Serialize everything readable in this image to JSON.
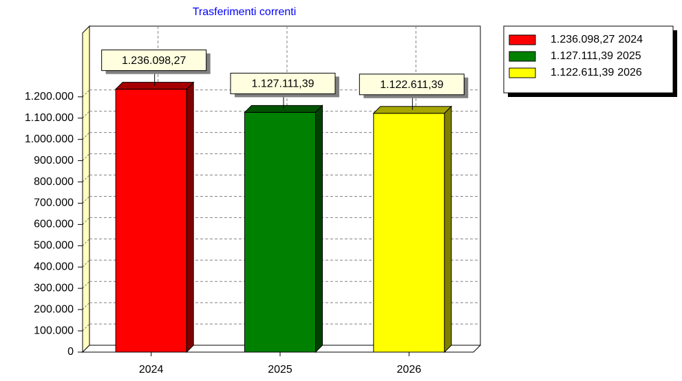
{
  "chart_data": {
    "type": "bar3d",
    "title": "Trasferimenti correnti",
    "categories": [
      "2024",
      "2025",
      "2026"
    ],
    "values": [
      1236098.27,
      1127111.39,
      1122611.39
    ],
    "value_labels": [
      "1.236.098,27",
      "1.127.111,39",
      "1.122.611,39"
    ],
    "colors": [
      "#ff0000",
      "#008000",
      "#ffff00"
    ],
    "ylim": [
      0,
      1500000
    ],
    "yticks": [
      0,
      {
        "value": 100000,
        "label": "100.000"
      },
      {
        "value": 200000,
        "label": "200.000"
      },
      {
        "value": 300000,
        "label": "300.000"
      },
      {
        "value": 400000,
        "label": "400.000"
      },
      {
        "value": 500000,
        "label": "500.000"
      },
      {
        "value": 600000,
        "label": "600.000"
      },
      {
        "value": 700000,
        "label": "700.000"
      },
      {
        "value": 800000,
        "label": "800.000"
      },
      {
        "value": 900000,
        "label": "900.000"
      },
      {
        "value": 1000000,
        "label": "1.000.000"
      },
      {
        "value": 1100000,
        "label": "1.100.000"
      },
      {
        "value": 1200000,
        "label": "1.200.000"
      }
    ],
    "grid": true,
    "legend": "top-right"
  }
}
